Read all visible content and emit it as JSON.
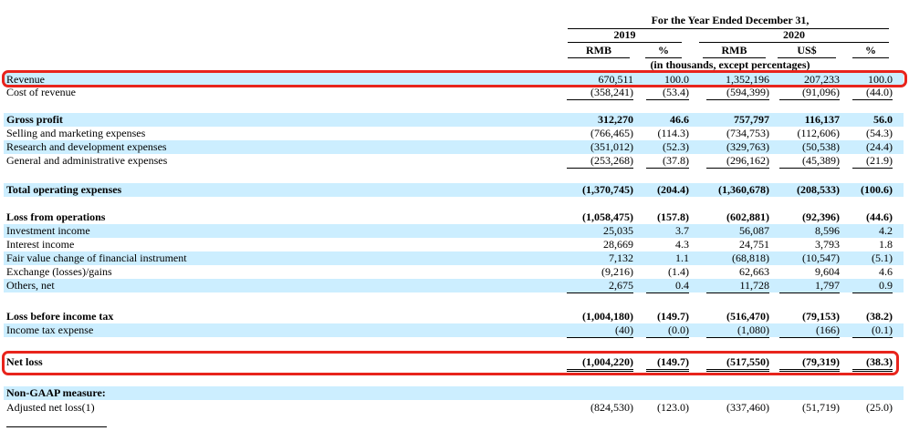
{
  "header": {
    "period": "For the Year Ended December 31,",
    "year1": "2019",
    "year2": "2020",
    "cols": [
      "RMB",
      "%",
      "RMB",
      "US$",
      "%"
    ],
    "units": "(in thousands, except percentages)"
  },
  "rows": [
    {
      "label": "Revenue",
      "bold": false,
      "shade": true,
      "values": [
        "670,511",
        "100.0",
        "1,352,196",
        "207,233",
        "100.0"
      ]
    },
    {
      "label": "Cost of revenue",
      "bold": false,
      "shade": false,
      "values": [
        "(358,241)",
        "(53.4)",
        "(594,399)",
        "(91,096)",
        "(44.0)"
      ]
    },
    {
      "label": "Gross profit",
      "bold": true,
      "shade": true,
      "values": [
        "312,270",
        "46.6",
        "757,797",
        "116,137",
        "56.0"
      ]
    },
    {
      "label": "Selling and marketing expenses",
      "bold": false,
      "shade": false,
      "values": [
        "(766,465)",
        "(114.3)",
        "(734,753)",
        "(112,606)",
        "(54.3)"
      ]
    },
    {
      "label": "Research and development expenses",
      "bold": false,
      "shade": true,
      "values": [
        "(351,012)",
        "(52.3)",
        "(329,763)",
        "(50,538)",
        "(24.4)"
      ]
    },
    {
      "label": "General and administrative expenses",
      "bold": false,
      "shade": false,
      "values": [
        "(253,268)",
        "(37.8)",
        "(296,162)",
        "(45,389)",
        "(21.9)"
      ]
    },
    {
      "label": "Total operating expenses",
      "bold": true,
      "shade": true,
      "values": [
        "(1,370,745)",
        "(204.4)",
        "(1,360,678)",
        "(208,533)",
        "(100.6)"
      ]
    },
    {
      "label": "Loss from operations",
      "bold": true,
      "shade": false,
      "values": [
        "(1,058,475)",
        "(157.8)",
        "(602,881)",
        "(92,396)",
        "(44.6)"
      ]
    },
    {
      "label": "Investment income",
      "bold": false,
      "shade": true,
      "values": [
        "25,035",
        "3.7",
        "56,087",
        "8,596",
        "4.2"
      ]
    },
    {
      "label": "Interest income",
      "bold": false,
      "shade": false,
      "values": [
        "28,669",
        "4.3",
        "24,751",
        "3,793",
        "1.8"
      ]
    },
    {
      "label": "Fair value change of financial instrument",
      "bold": false,
      "shade": true,
      "values": [
        "7,132",
        "1.1",
        "(68,818)",
        "(10,547)",
        "(5.1)"
      ]
    },
    {
      "label": "Exchange (losses)/gains",
      "bold": false,
      "shade": false,
      "values": [
        "(9,216)",
        "(1.4)",
        "62,663",
        "9,604",
        "4.6"
      ]
    },
    {
      "label": "Others, net",
      "bold": false,
      "shade": true,
      "values": [
        "2,675",
        "0.4",
        "11,728",
        "1,797",
        "0.9"
      ]
    },
    {
      "label": "Loss before income tax",
      "bold": true,
      "shade": false,
      "values": [
        "(1,004,180)",
        "(149.7)",
        "(516,470)",
        "(79,153)",
        "(38.2)"
      ]
    },
    {
      "label": "Income tax expense",
      "bold": false,
      "shade": true,
      "values": [
        "(40)",
        "(0.0)",
        "(1,080)",
        "(166)",
        "(0.1)"
      ]
    },
    {
      "label": "Net loss",
      "bold": true,
      "shade": false,
      "values": [
        "(1,004,220)",
        "(149.7)",
        "(517,550)",
        "(79,319)",
        "(38.3)"
      ]
    },
    {
      "label": "Non-GAAP measure:",
      "bold": true,
      "shade": true,
      "values": [
        "",
        "",
        "",
        "",
        ""
      ]
    },
    {
      "label": "Adjusted net loss(1)",
      "bold": false,
      "shade": false,
      "values": [
        "(824,530)",
        "(123.0)",
        "(337,460)",
        "(51,719)",
        "(25.0)"
      ]
    }
  ]
}
